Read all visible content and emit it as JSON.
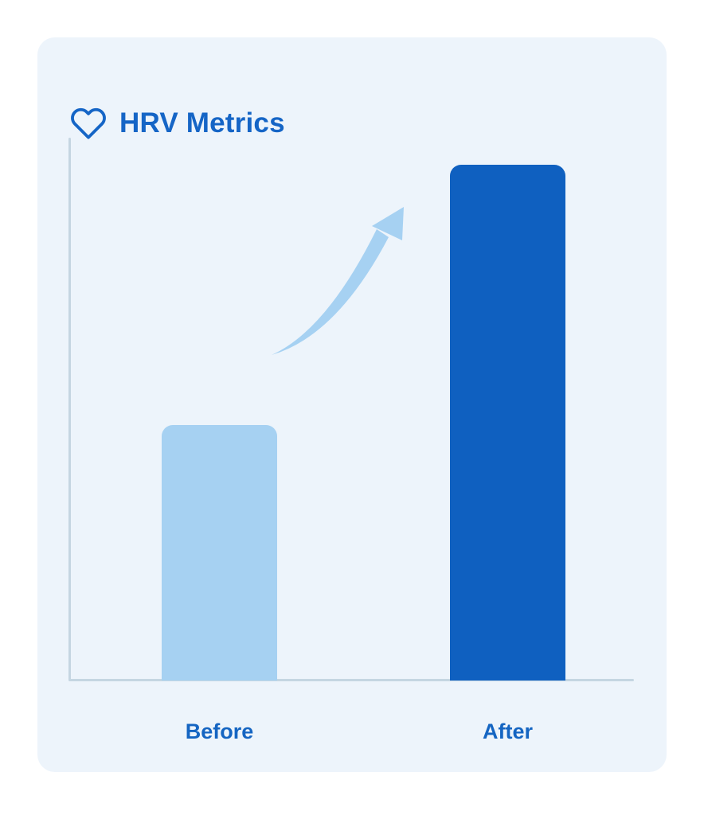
{
  "card": {
    "title": "HRV Metrics",
    "title_color": "#1565C6",
    "background": "#EDF4FB",
    "icon": "heart-outline-icon"
  },
  "chart_data": {
    "type": "bar",
    "title": "HRV Metrics",
    "categories": [
      "Before",
      "After"
    ],
    "values": [
      47,
      95
    ],
    "ylim": [
      0,
      100
    ],
    "xlabel": "",
    "ylabel": "",
    "grid": false,
    "legend": null,
    "value_labels_shown": false,
    "bar_colors": [
      "#A6D1F2",
      "#0F60C0"
    ],
    "axis_color": "#C5D6E2",
    "label_color": "#1565C2",
    "annotations": [
      {
        "name": "upward-trend-arrow",
        "color": "#A6D1F2",
        "position": "between-bars"
      }
    ]
  }
}
